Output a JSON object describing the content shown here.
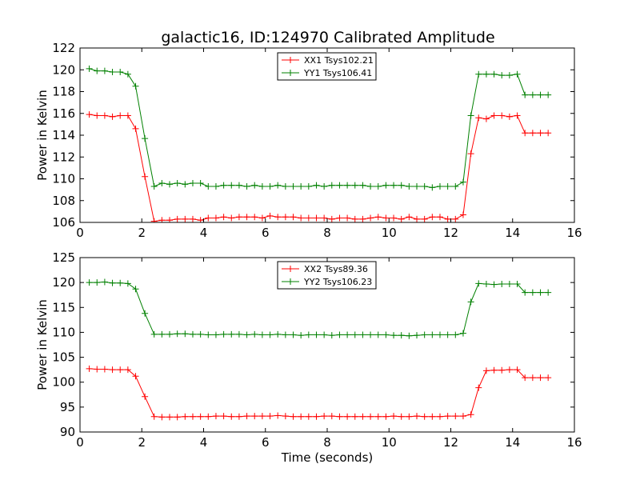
{
  "figure_title": "galactic16, ID:124970 Calibrated Amplitude",
  "chart_data": [
    {
      "type": "line",
      "title": "galactic16, ID:124970 Calibrated Amplitude",
      "xlabel": "",
      "ylabel": "Power in Kelvin",
      "xlim": [
        0,
        16
      ],
      "ylim": [
        106,
        122
      ],
      "xticks": [
        0,
        2,
        4,
        6,
        8,
        10,
        12,
        14,
        16
      ],
      "yticks": [
        106,
        108,
        110,
        112,
        114,
        116,
        118,
        120,
        122
      ],
      "grid": false,
      "legend": "top-center",
      "x": [
        0.3,
        0.55,
        0.8,
        1.05,
        1.3,
        1.55,
        1.8,
        2.1,
        2.4,
        2.65,
        2.9,
        3.15,
        3.4,
        3.65,
        3.9,
        4.15,
        4.4,
        4.65,
        4.9,
        5.15,
        5.4,
        5.65,
        5.9,
        6.15,
        6.4,
        6.65,
        6.9,
        7.15,
        7.4,
        7.65,
        7.9,
        8.15,
        8.4,
        8.65,
        8.9,
        9.15,
        9.4,
        9.65,
        9.9,
        10.15,
        10.4,
        10.65,
        10.9,
        11.15,
        11.4,
        11.65,
        11.9,
        12.15,
        12.4,
        12.65,
        12.9,
        13.15,
        13.4,
        13.65,
        13.9,
        14.15,
        14.4,
        14.65,
        14.9,
        15.15
      ],
      "series": [
        {
          "name": "XX1 Tsys102.21",
          "color": "#ff0000",
          "values": [
            115.9,
            115.8,
            115.8,
            115.7,
            115.8,
            115.8,
            114.6,
            110.2,
            106.1,
            106.2,
            106.2,
            106.3,
            106.3,
            106.3,
            106.2,
            106.4,
            106.4,
            106.5,
            106.4,
            106.5,
            106.5,
            106.5,
            106.4,
            106.6,
            106.5,
            106.5,
            106.5,
            106.4,
            106.4,
            106.4,
            106.4,
            106.3,
            106.4,
            106.4,
            106.3,
            106.3,
            106.4,
            106.5,
            106.4,
            106.4,
            106.3,
            106.5,
            106.3,
            106.3,
            106.5,
            106.5,
            106.3,
            106.3,
            106.7,
            112.3,
            115.6,
            115.5,
            115.8,
            115.8,
            115.7,
            115.8,
            114.2,
            114.2,
            114.2,
            114.2
          ]
        },
        {
          "name": "YY1 Tsys106.41",
          "color": "#008000",
          "values": [
            120.1,
            119.9,
            119.9,
            119.8,
            119.8,
            119.6,
            118.5,
            113.7,
            109.3,
            109.6,
            109.5,
            109.6,
            109.5,
            109.6,
            109.6,
            109.3,
            109.3,
            109.4,
            109.4,
            109.4,
            109.3,
            109.4,
            109.3,
            109.3,
            109.4,
            109.3,
            109.3,
            109.3,
            109.3,
            109.4,
            109.3,
            109.4,
            109.4,
            109.4,
            109.4,
            109.4,
            109.3,
            109.3,
            109.4,
            109.4,
            109.4,
            109.3,
            109.3,
            109.3,
            109.2,
            109.3,
            109.3,
            109.3,
            109.7,
            115.8,
            119.6,
            119.6,
            119.6,
            119.5,
            119.5,
            119.6,
            117.7,
            117.7,
            117.7,
            117.7
          ]
        }
      ]
    },
    {
      "type": "line",
      "title": "",
      "xlabel": "Time (seconds)",
      "ylabel": "Power in Kelvin",
      "xlim": [
        0,
        16
      ],
      "ylim": [
        90,
        125
      ],
      "xticks": [
        0,
        2,
        4,
        6,
        8,
        10,
        12,
        14,
        16
      ],
      "yticks": [
        90,
        95,
        100,
        105,
        110,
        115,
        120,
        125
      ],
      "grid": false,
      "legend": "top-center",
      "x": [
        0.3,
        0.55,
        0.8,
        1.05,
        1.3,
        1.55,
        1.8,
        2.1,
        2.4,
        2.65,
        2.9,
        3.15,
        3.4,
        3.65,
        3.9,
        4.15,
        4.4,
        4.65,
        4.9,
        5.15,
        5.4,
        5.65,
        5.9,
        6.15,
        6.4,
        6.65,
        6.9,
        7.15,
        7.4,
        7.65,
        7.9,
        8.15,
        8.4,
        8.65,
        8.9,
        9.15,
        9.4,
        9.65,
        9.9,
        10.15,
        10.4,
        10.65,
        10.9,
        11.15,
        11.4,
        11.65,
        11.9,
        12.15,
        12.4,
        12.65,
        12.9,
        13.15,
        13.4,
        13.65,
        13.9,
        14.15,
        14.4,
        14.65,
        14.9,
        15.15
      ],
      "series": [
        {
          "name": "XX2 Tsys89.36",
          "color": "#ff0000",
          "values": [
            102.7,
            102.6,
            102.6,
            102.5,
            102.5,
            102.5,
            101.2,
            97.1,
            93.1,
            93.0,
            93.0,
            93.0,
            93.1,
            93.1,
            93.1,
            93.1,
            93.2,
            93.2,
            93.1,
            93.1,
            93.2,
            93.2,
            93.2,
            93.2,
            93.3,
            93.2,
            93.1,
            93.1,
            93.1,
            93.1,
            93.2,
            93.2,
            93.1,
            93.1,
            93.1,
            93.1,
            93.1,
            93.1,
            93.1,
            93.2,
            93.1,
            93.1,
            93.2,
            93.1,
            93.1,
            93.1,
            93.2,
            93.2,
            93.2,
            93.5,
            98.9,
            102.3,
            102.4,
            102.4,
            102.5,
            102.5,
            100.9,
            100.9,
            100.9,
            100.9
          ]
        },
        {
          "name": "YY2 Tsys106.23",
          "color": "#008000",
          "values": [
            120.0,
            120.0,
            120.1,
            119.9,
            119.9,
            119.8,
            118.7,
            113.8,
            109.6,
            109.6,
            109.6,
            109.7,
            109.7,
            109.6,
            109.6,
            109.5,
            109.5,
            109.6,
            109.6,
            109.6,
            109.5,
            109.6,
            109.5,
            109.5,
            109.6,
            109.5,
            109.5,
            109.4,
            109.5,
            109.5,
            109.5,
            109.4,
            109.5,
            109.5,
            109.5,
            109.5,
            109.5,
            109.5,
            109.5,
            109.4,
            109.4,
            109.3,
            109.4,
            109.5,
            109.5,
            109.5,
            109.5,
            109.5,
            109.8,
            116.1,
            119.8,
            119.7,
            119.6,
            119.7,
            119.7,
            119.7,
            118.0,
            118.0,
            118.0,
            118.0
          ]
        }
      ]
    }
  ]
}
